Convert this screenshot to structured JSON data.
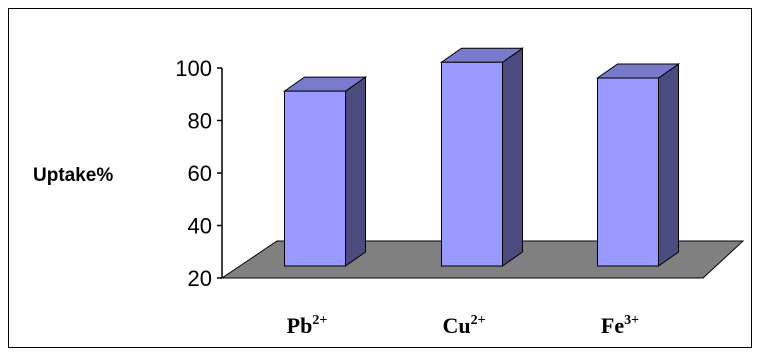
{
  "chart_data": {
    "type": "bar",
    "title": "",
    "xlabel": "",
    "ylabel": "Uptake%",
    "ylim": [
      20,
      100
    ],
    "yticks": [
      20,
      40,
      60,
      80,
      100
    ],
    "categories": [
      {
        "base": "Pb",
        "sup": "2+"
      },
      {
        "base": "Cu",
        "sup": "2+"
      },
      {
        "base": "Fe",
        "sup": "3+"
      }
    ],
    "values": [
      87,
      98,
      92
    ],
    "grid": false,
    "legend": "none",
    "style": "3d-column"
  },
  "colors": {
    "bar_front": "#9999ff",
    "bar_side": "#4b4b80",
    "bar_top": "#7a7acc",
    "floor": "#808080"
  }
}
